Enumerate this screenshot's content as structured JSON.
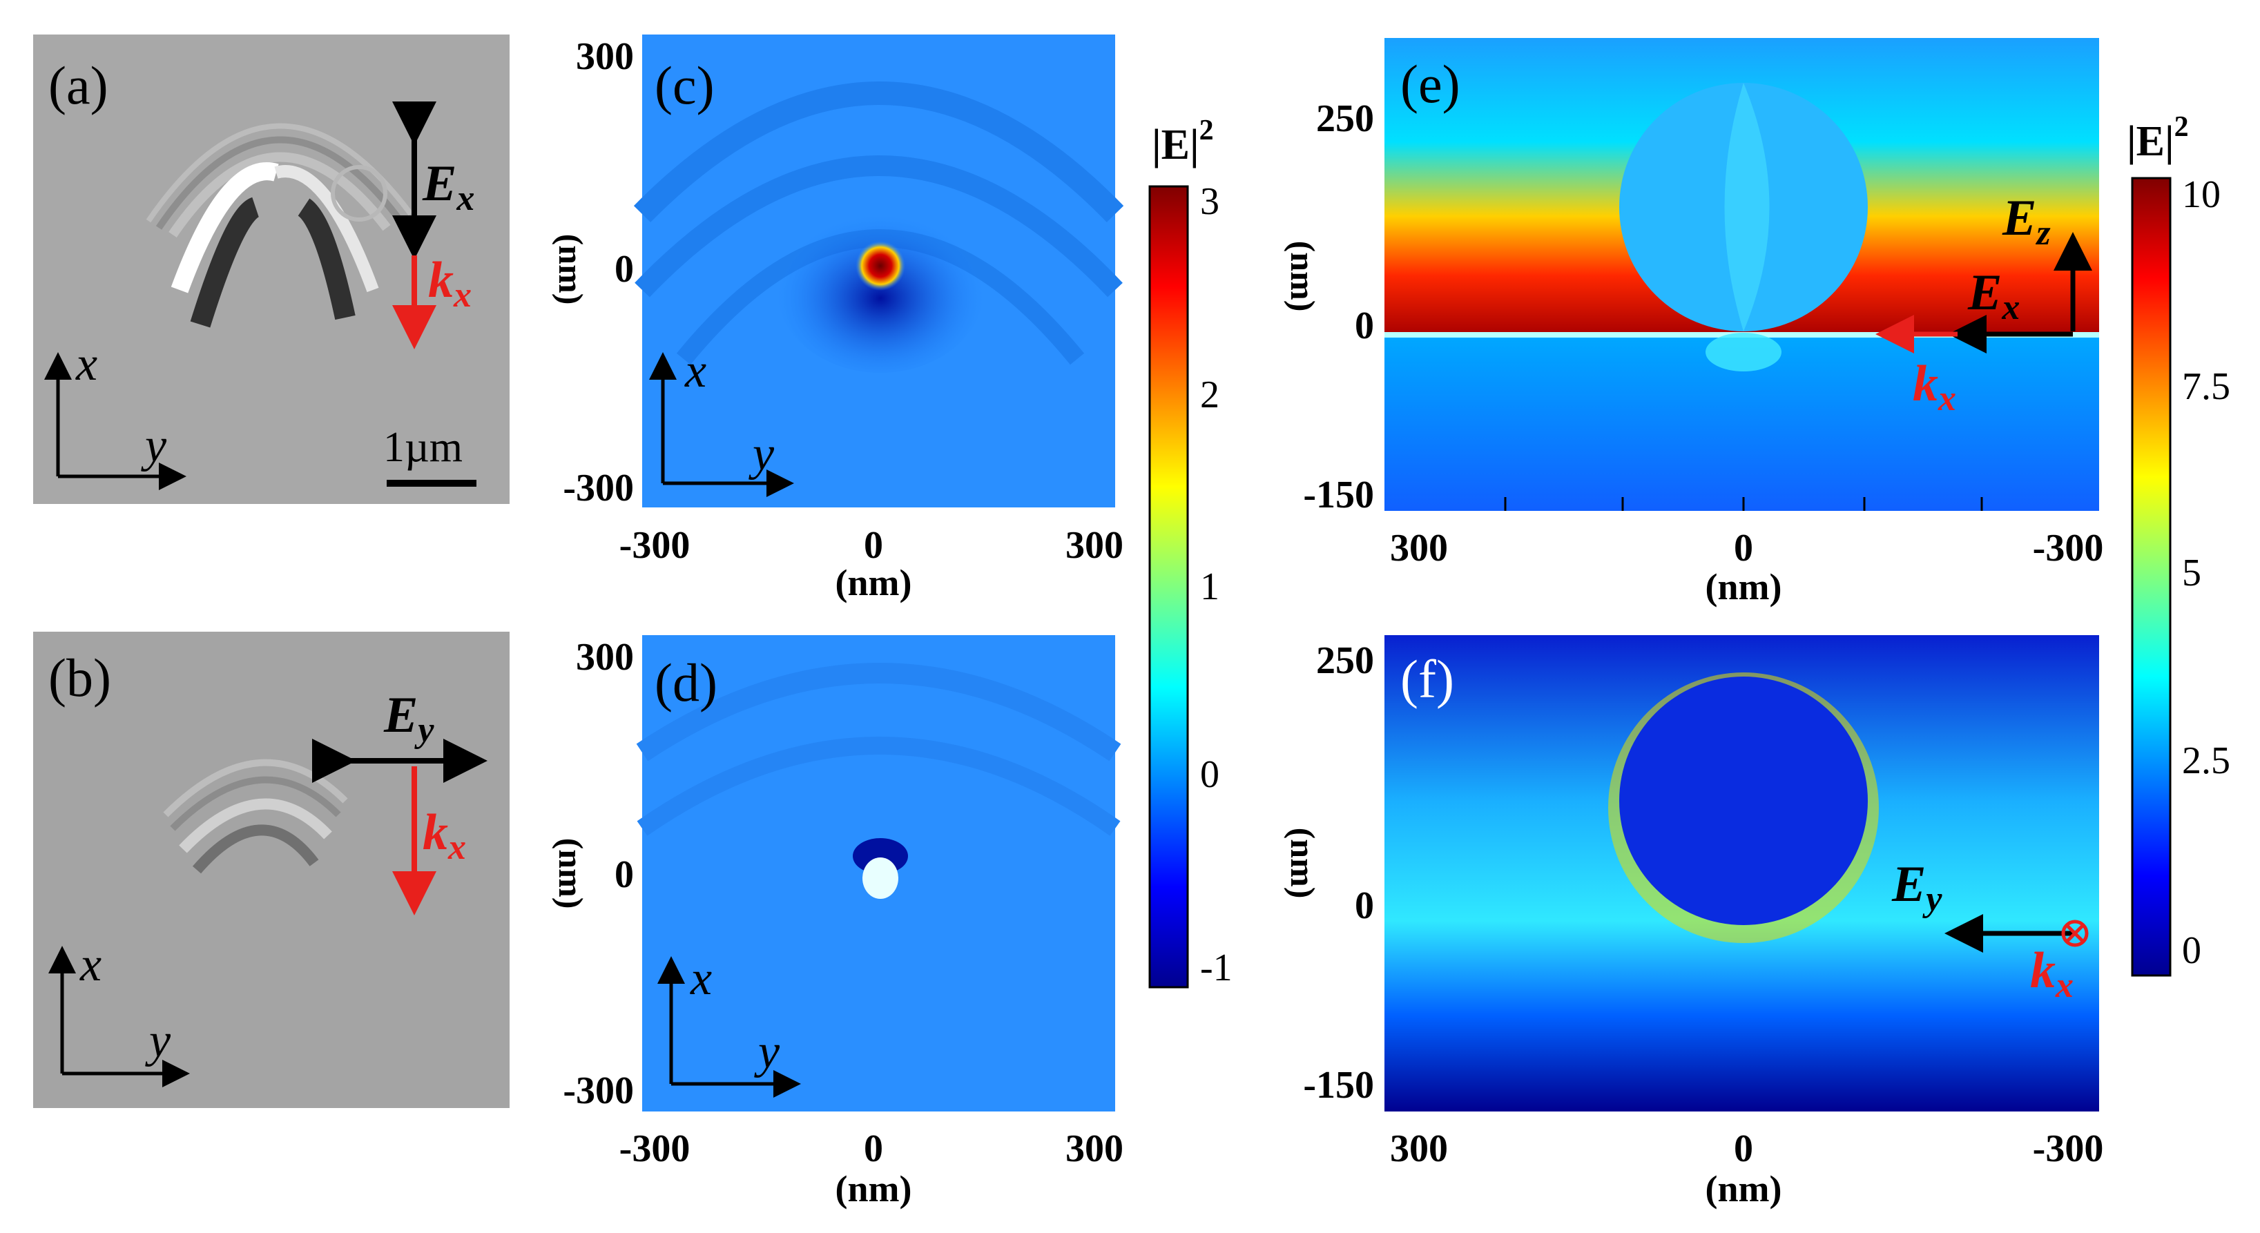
{
  "panels": {
    "a": {
      "label": "(a)",
      "field": "E",
      "field_sub": "x",
      "wave": "k",
      "wave_sub": "x",
      "axis_x": "x",
      "axis_y": "y",
      "scale_bar": "1µm"
    },
    "b": {
      "label": "(b)",
      "field": "E",
      "field_sub": "y",
      "wave": "k",
      "wave_sub": "x",
      "axis_x": "x",
      "axis_y": "y"
    },
    "c": {
      "label": "(c)",
      "axis_x": "x",
      "axis_y": "y",
      "xticks": [
        "-300",
        "0",
        "300"
      ],
      "yticks": [
        "300",
        "0",
        "-300"
      ],
      "xunit": "(nm)",
      "yunit": "(nm)"
    },
    "d": {
      "label": "(d)",
      "axis_x": "x",
      "axis_y": "y",
      "xticks": [
        "-300",
        "0",
        "300"
      ],
      "yticks": [
        "300",
        "0",
        "-300"
      ],
      "xunit": "(nm)",
      "yunit": "(nm)"
    },
    "e": {
      "label": "(e)",
      "xticks": [
        "300",
        "0",
        "-300"
      ],
      "yticks": [
        "250",
        "0",
        "-150"
      ],
      "xunit": "(nm)",
      "yunit": "(nm)",
      "field_z": "E",
      "field_z_sub": "z",
      "field_x": "E",
      "field_x_sub": "x",
      "wave": "k",
      "wave_sub": "x"
    },
    "f": {
      "label": "(f)",
      "xticks": [
        "300",
        "0",
        "-300"
      ],
      "yticks": [
        "250",
        "0",
        "-150"
      ],
      "xunit": "(nm)",
      "yunit": "(nm)",
      "field": "E",
      "field_sub": "y",
      "wave": "k",
      "wave_sub": "x"
    }
  },
  "colorbars": {
    "left": {
      "title": "|E|",
      "title_sup": "2",
      "ticks": [
        "3",
        "2",
        "1",
        "0",
        "-1"
      ]
    },
    "right": {
      "title": "|E|",
      "title_sup": "2",
      "ticks": [
        "10",
        "7.5",
        "5",
        "2.5",
        "0"
      ]
    }
  },
  "colors": {
    "arrow_black": "#000000",
    "arrow_red": "#e8201c",
    "jet_low": "#00008f",
    "jet_high": "#800000"
  }
}
